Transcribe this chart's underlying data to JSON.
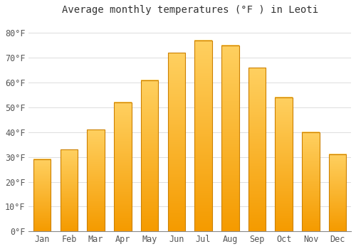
{
  "title": "Average monthly temperatures (°F ) in Leoti",
  "months": [
    "Jan",
    "Feb",
    "Mar",
    "Apr",
    "May",
    "Jun",
    "Jul",
    "Aug",
    "Sep",
    "Oct",
    "Nov",
    "Dec"
  ],
  "values": [
    29,
    33,
    41,
    52,
    61,
    72,
    77,
    75,
    66,
    54,
    40,
    31
  ],
  "bar_color_bottom": "#F59B00",
  "bar_color_top": "#FFD060",
  "bar_edge_color": "#CC8000",
  "background_color": "#FFFFFF",
  "grid_color": "#DDDDDD",
  "ylim": [
    0,
    85
  ],
  "yticks": [
    0,
    10,
    20,
    30,
    40,
    50,
    60,
    70,
    80
  ],
  "title_fontsize": 10,
  "tick_fontsize": 8.5,
  "font_family": "monospace"
}
